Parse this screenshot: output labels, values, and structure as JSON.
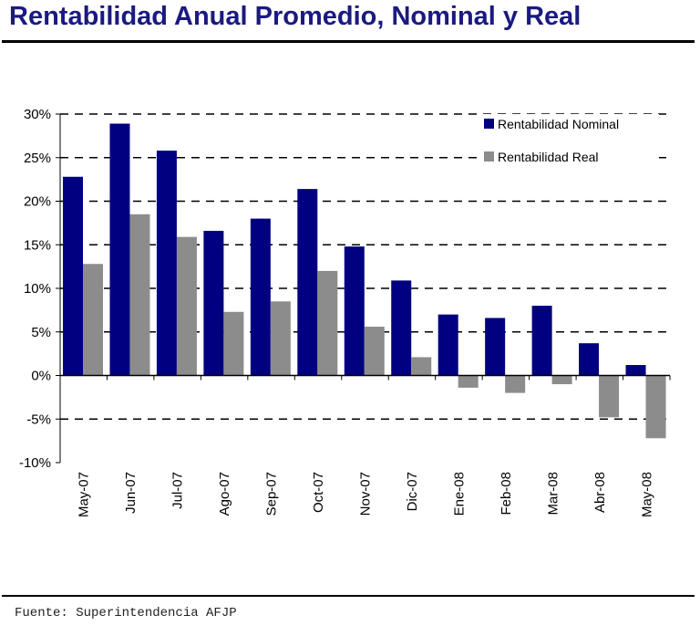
{
  "title": "Rentabilidad Anual Promedio, Nominal y Real",
  "source": "Fuente: Superintendencia AFJP",
  "colors": {
    "nominal": "#000080",
    "real": "#8c8c8c",
    "title": "#1a1a80"
  },
  "chart_data": {
    "type": "bar",
    "title": "",
    "xlabel": "",
    "ylabel": "",
    "ylim": [
      -10,
      30
    ],
    "yticks": [
      30,
      25,
      20,
      15,
      10,
      5,
      0,
      -5,
      -10
    ],
    "ytick_labels": [
      "30%",
      "25%",
      "20%",
      "15%",
      "10%",
      "5%",
      "0%",
      "-5%",
      "-10%"
    ],
    "grid": "dashed horizontal",
    "legend_position": "top-right",
    "categories": [
      "May-07",
      "Jun-07",
      "Jul-07",
      "Ago-07",
      "Sep-07",
      "Oct-07",
      "Nov-07",
      "Dic-07",
      "Ene-08",
      "Feb-08",
      "Mar-08",
      "Abr-08",
      "May-08"
    ],
    "series": [
      {
        "name": "Rentabilidad Nominal",
        "values": [
          22.8,
          28.9,
          25.8,
          16.6,
          18.0,
          21.4,
          14.8,
          10.9,
          7.0,
          6.6,
          8.0,
          3.7,
          1.2
        ]
      },
      {
        "name": "Rentabilidad Real",
        "values": [
          12.8,
          18.5,
          15.9,
          7.3,
          8.5,
          12.0,
          5.6,
          2.1,
          -1.4,
          -2.0,
          -1.0,
          -4.8,
          -7.2
        ]
      }
    ]
  }
}
